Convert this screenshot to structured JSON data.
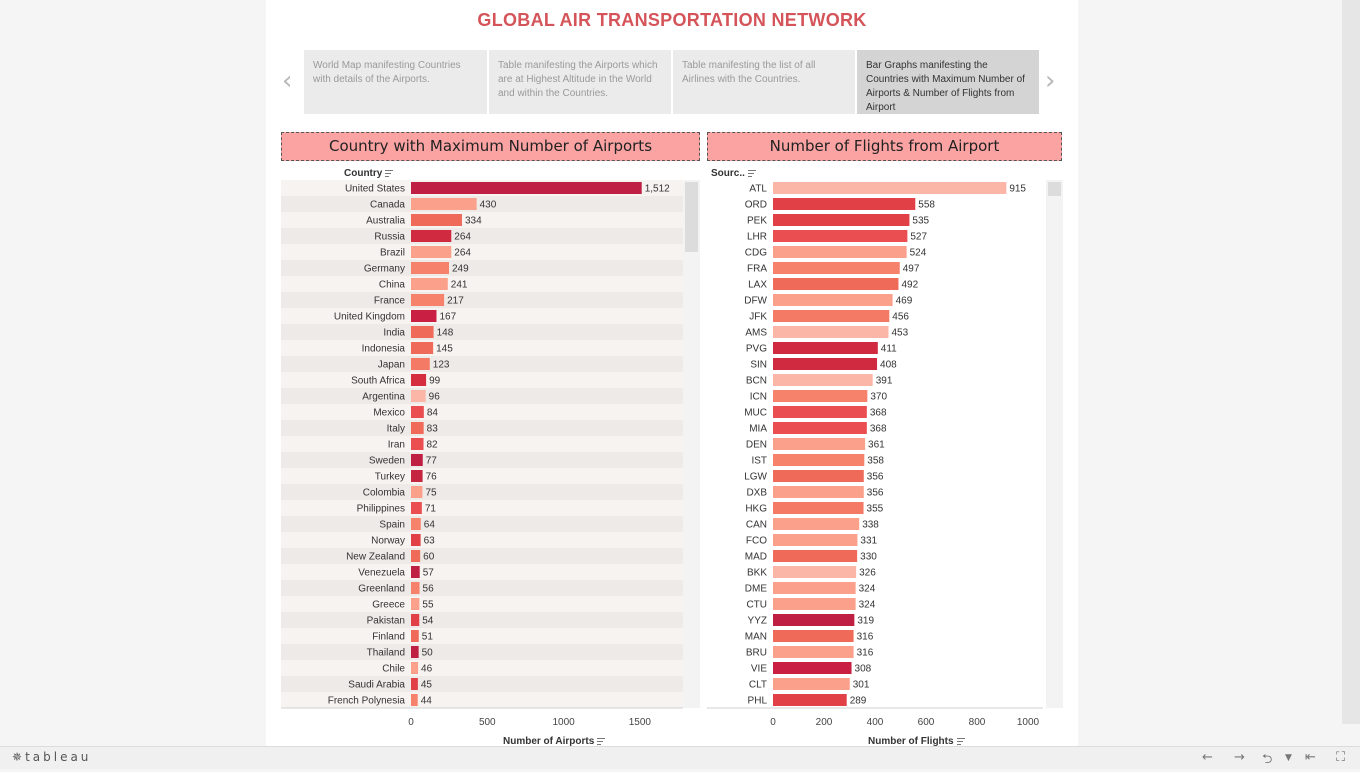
{
  "dashboard": {
    "title": "GLOBAL AIR TRANSPORTATION NETWORK"
  },
  "story": {
    "prev_icon": "chevron-left-icon",
    "next_icon": "chevron-right-icon",
    "points": [
      {
        "label": "World Map manifesting Countries with details of the Airports.",
        "active": false
      },
      {
        "label": "Table manifesting the Airports which are at Highest Altitude in the World and within the Countries.",
        "active": false
      },
      {
        "label": "Table manifesting the list of all Airlines with the Countries.",
        "active": false
      },
      {
        "label": "Bar Graphs manifesting the Countries with Maximum Number of Airports & Number of Flights from Airport",
        "active": true
      }
    ]
  },
  "colors": {
    "title": "#d4545a",
    "panel_header": "#fba3a3",
    "bar_dark": "#bf1f43",
    "bar_light": "#fbb6a8"
  },
  "chart_data": [
    {
      "type": "bar",
      "orientation": "horizontal",
      "title": "Country with Maximum Number of Airports",
      "row_header": "Country",
      "xlabel": "Number of Airports",
      "xlim": [
        0,
        1700
      ],
      "xticks": [
        "0",
        "500",
        "1000",
        "1500"
      ],
      "categories": [
        "United States",
        "Canada",
        "Australia",
        "Russia",
        "Brazil",
        "Germany",
        "China",
        "France",
        "United Kingdom",
        "India",
        "Indonesia",
        "Japan",
        "South Africa",
        "Argentina",
        "Mexico",
        "Italy",
        "Iran",
        "Sweden",
        "Turkey",
        "Colombia",
        "Philippines",
        "Spain",
        "Norway",
        "New Zealand",
        "Venezuela",
        "Greenland",
        "Greece",
        "Pakistan",
        "Finland",
        "Thailand",
        "Chile",
        "Saudi Arabia",
        "French Polynesia"
      ],
      "values": [
        1512,
        430,
        334,
        264,
        264,
        249,
        241,
        217,
        167,
        148,
        145,
        123,
        99,
        96,
        84,
        83,
        82,
        77,
        76,
        75,
        71,
        64,
        63,
        60,
        57,
        56,
        55,
        54,
        51,
        50,
        46,
        45,
        44
      ],
      "labels": [
        "1,512",
        "430",
        "334",
        "264",
        "264",
        "249",
        "241",
        "217",
        "167",
        "148",
        "145",
        "123",
        "99",
        "96",
        "84",
        "83",
        "82",
        "77",
        "76",
        "75",
        "71",
        "64",
        "63",
        "60",
        "57",
        "56",
        "55",
        "54",
        "51",
        "50",
        "46",
        "45",
        "44"
      ],
      "bar_colors": [
        "#bf1f43",
        "#fba08a",
        "#f06a5a",
        "#d02a40",
        "#fba08a",
        "#f7826c",
        "#fba08a",
        "#f7826c",
        "#c81f42",
        "#f06a5a",
        "#f06a5a",
        "#f47a66",
        "#d52c3e",
        "#fbb6a8",
        "#ea4e50",
        "#f06a5a",
        "#ea4e50",
        "#bf1f43",
        "#c52540",
        "#fba08a",
        "#ea4e50",
        "#f7826c",
        "#e04046",
        "#f06a5a",
        "#bf1f43",
        "#f7826c",
        "#fba08a",
        "#e04046",
        "#f06a5a",
        "#bf1f43",
        "#fba08a",
        "#e04046",
        "#f7826c"
      ]
    },
    {
      "type": "bar",
      "orientation": "horizontal",
      "title": "Number of Flights from Airport",
      "row_header": "Sourc..",
      "xlabel": "Number of Flights",
      "xlim": [
        0,
        1040
      ],
      "xticks": [
        "0",
        "200",
        "400",
        "600",
        "800",
        "1000"
      ],
      "categories": [
        "ATL",
        "ORD",
        "PEK",
        "LHR",
        "CDG",
        "FRA",
        "LAX",
        "DFW",
        "JFK",
        "AMS",
        "PVG",
        "SIN",
        "BCN",
        "ICN",
        "MUC",
        "MIA",
        "DEN",
        "IST",
        "LGW",
        "DXB",
        "HKG",
        "CAN",
        "FCO",
        "MAD",
        "BKK",
        "DME",
        "CTU",
        "YYZ",
        "MAN",
        "BRU",
        "VIE",
        "CLT",
        "PHL"
      ],
      "values": [
        915,
        558,
        535,
        527,
        524,
        497,
        492,
        469,
        456,
        453,
        411,
        408,
        391,
        370,
        368,
        368,
        361,
        358,
        356,
        356,
        355,
        338,
        331,
        330,
        326,
        324,
        324,
        319,
        316,
        316,
        308,
        301,
        289
      ],
      "labels": [
        "915",
        "558",
        "535",
        "527",
        "524",
        "497",
        "492",
        "469",
        "456",
        "453",
        "411",
        "408",
        "391",
        "370",
        "368",
        "368",
        "361",
        "358",
        "356",
        "356",
        "355",
        "338",
        "331",
        "330",
        "326",
        "324",
        "324",
        "319",
        "316",
        "316",
        "308",
        "301",
        "289"
      ],
      "bar_colors": [
        "#fbb6a8",
        "#e04046",
        "#e04046",
        "#ea4e50",
        "#fba08a",
        "#f7826c",
        "#f06a5a",
        "#fba08a",
        "#f47a66",
        "#fbb6a8",
        "#d02a40",
        "#d02a40",
        "#fbb6a8",
        "#f7826c",
        "#ea4e50",
        "#ea4e50",
        "#fba08a",
        "#f7826c",
        "#f06a5a",
        "#fba08a",
        "#f47a66",
        "#fba08a",
        "#fba08a",
        "#f06a5a",
        "#fbb6a8",
        "#fba08a",
        "#fba08a",
        "#bf1f43",
        "#f06a5a",
        "#fba08a",
        "#c81f42",
        "#fba08a",
        "#e04046"
      ]
    }
  ],
  "toolbar": {
    "logo": "tableau",
    "undo_icon": "undo-icon",
    "redo_icon": "redo-icon",
    "share_icon": "share-icon",
    "revert_icon": "revert-icon",
    "fullscreen_icon": "fullscreen-icon"
  }
}
